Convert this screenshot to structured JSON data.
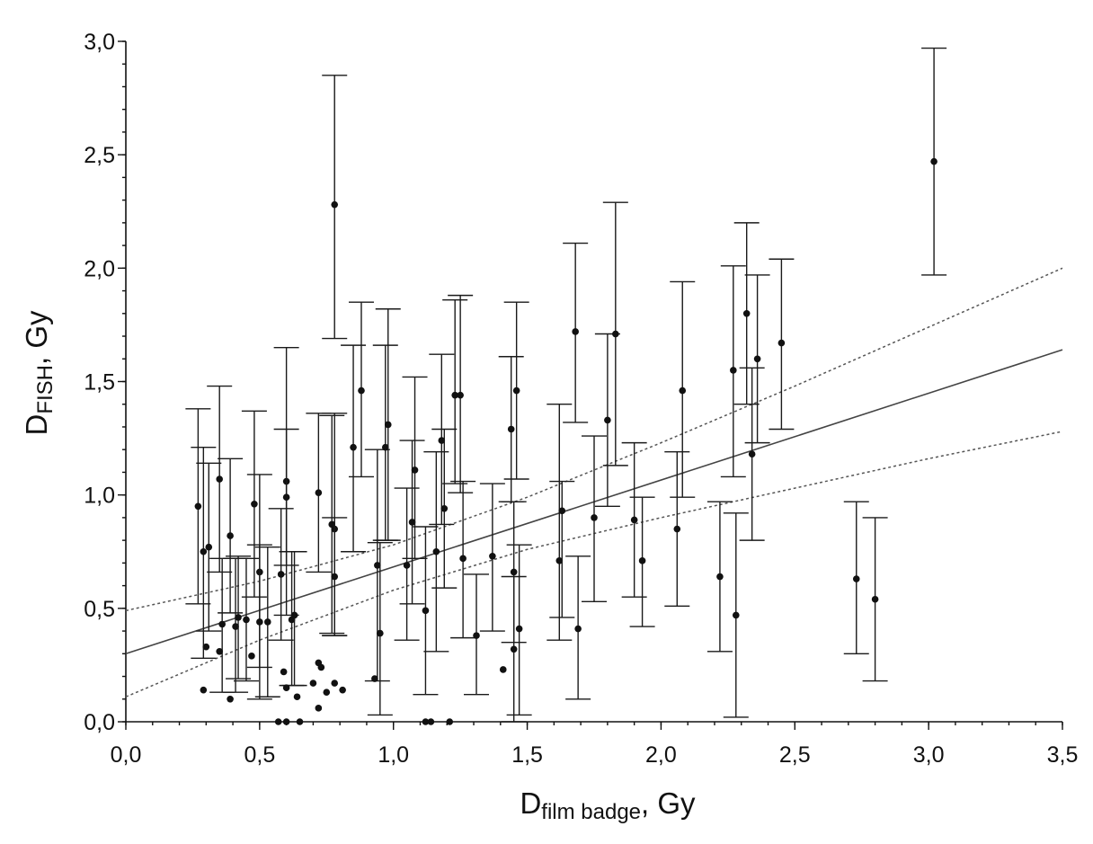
{
  "chart_data": {
    "type": "scatter",
    "xlabel": {
      "main": "D",
      "sub": "film badge",
      "suffix": ", Gy"
    },
    "ylabel": {
      "main": "D",
      "sub": "FISH",
      "suffix": ", Gy"
    },
    "xlim": [
      0,
      3.5
    ],
    "ylim": [
      0,
      3.0
    ],
    "grid": false,
    "x_ticks": [
      {
        "value": 0.0,
        "label": "0,0"
      },
      {
        "value": 0.5,
        "label": "0,5"
      },
      {
        "value": 1.0,
        "label": "1,0"
      },
      {
        "value": 1.5,
        "label": "1,5"
      },
      {
        "value": 2.0,
        "label": "2,0"
      },
      {
        "value": 2.5,
        "label": "2,5"
      },
      {
        "value": 3.0,
        "label": "3,0"
      },
      {
        "value": 3.5,
        "label": "3,5"
      }
    ],
    "y_ticks": [
      {
        "value": 0.0,
        "label": "0,0"
      },
      {
        "value": 0.5,
        "label": "0,5"
      },
      {
        "value": 1.0,
        "label": "1,0"
      },
      {
        "value": 1.5,
        "label": "1,5"
      },
      {
        "value": 2.0,
        "label": "2,0"
      },
      {
        "value": 2.5,
        "label": "2,5"
      },
      {
        "value": 3.0,
        "label": "3,0"
      }
    ],
    "points": [
      {
        "x": 0.27,
        "y": 0.95,
        "lo": 0.52,
        "hi": 1.38
      },
      {
        "x": 0.29,
        "y": 0.75,
        "lo": 0.28,
        "hi": 1.21
      },
      {
        "x": 0.31,
        "y": 0.77,
        "lo": 0.4,
        "hi": 1.14
      },
      {
        "x": 0.29,
        "y": 0.14
      },
      {
        "x": 0.3,
        "y": 0.33
      },
      {
        "x": 0.35,
        "y": 1.07,
        "lo": 0.66,
        "hi": 1.48
      },
      {
        "x": 0.36,
        "y": 0.43,
        "lo": 0.13,
        "hi": 0.72
      },
      {
        "x": 0.35,
        "y": 0.31
      },
      {
        "x": 0.39,
        "y": 0.82,
        "lo": 0.48,
        "hi": 1.16
      },
      {
        "x": 0.39,
        "y": 0.1
      },
      {
        "x": 0.41,
        "y": 0.42,
        "lo": 0.13,
        "hi": 0.72
      },
      {
        "x": 0.42,
        "y": 0.46,
        "lo": 0.19,
        "hi": 0.73
      },
      {
        "x": 0.45,
        "y": 0.45,
        "lo": 0.18,
        "hi": 0.72
      },
      {
        "x": 0.48,
        "y": 0.96,
        "lo": 0.55,
        "hi": 1.37
      },
      {
        "x": 0.47,
        "y": 0.29
      },
      {
        "x": 0.5,
        "y": 0.66,
        "lo": 0.24,
        "hi": 1.09
      },
      {
        "x": 0.5,
        "y": 0.44,
        "lo": 0.1,
        "hi": 0.78
      },
      {
        "x": 0.53,
        "y": 0.44,
        "lo": 0.11,
        "hi": 0.77
      },
      {
        "x": 0.58,
        "y": 0.65,
        "lo": 0.36,
        "hi": 0.94
      },
      {
        "x": 0.6,
        "y": 1.06,
        "lo": 0.47,
        "hi": 1.65
      },
      {
        "x": 0.6,
        "y": 0.99,
        "lo": 0.69,
        "hi": 1.29
      },
      {
        "x": 0.62,
        "y": 0.45,
        "lo": 0.16,
        "hi": 0.75
      },
      {
        "x": 0.63,
        "y": 0.47,
        "lo": 0.16,
        "hi": 0.75
      },
      {
        "x": 0.59,
        "y": 0.22
      },
      {
        "x": 0.6,
        "y": 0.15
      },
      {
        "x": 0.64,
        "y": 0.11
      },
      {
        "x": 0.57,
        "y": 0.0
      },
      {
        "x": 0.6,
        "y": 0.0
      },
      {
        "x": 0.65,
        "y": 0.0
      },
      {
        "x": 0.72,
        "y": 1.01,
        "lo": 0.66,
        "hi": 1.36
      },
      {
        "x": 0.7,
        "y": 0.17
      },
      {
        "x": 0.72,
        "y": 0.26
      },
      {
        "x": 0.73,
        "y": 0.24
      },
      {
        "x": 0.72,
        "y": 0.06
      },
      {
        "x": 0.75,
        "y": 0.13
      },
      {
        "x": 0.77,
        "y": 0.87,
        "lo": 0.39,
        "hi": 1.35
      },
      {
        "x": 0.78,
        "y": 0.85,
        "lo": 0.38,
        "hi": 1.36
      },
      {
        "x": 0.78,
        "y": 0.64,
        "lo": 0.38,
        "hi": 0.9
      },
      {
        "x": 0.78,
        "y": 2.28,
        "lo": 1.69,
        "hi": 2.85
      },
      {
        "x": 0.78,
        "y": 0.17
      },
      {
        "x": 0.81,
        "y": 0.14
      },
      {
        "x": 0.85,
        "y": 1.21,
        "lo": 0.75,
        "hi": 1.66
      },
      {
        "x": 0.88,
        "y": 1.46,
        "lo": 1.08,
        "hi": 1.85
      },
      {
        "x": 0.94,
        "y": 0.69,
        "lo": 0.18,
        "hi": 1.2
      },
      {
        "x": 0.95,
        "y": 0.39,
        "lo": 0.03,
        "hi": 0.79
      },
      {
        "x": 0.93,
        "y": 0.19
      },
      {
        "x": 0.97,
        "y": 1.21,
        "lo": 0.8,
        "hi": 1.66
      },
      {
        "x": 0.98,
        "y": 1.31,
        "lo": 0.8,
        "hi": 1.82
      },
      {
        "x": 1.05,
        "y": 0.69,
        "lo": 0.36,
        "hi": 1.03
      },
      {
        "x": 1.07,
        "y": 0.88,
        "lo": 0.52,
        "hi": 1.24
      },
      {
        "x": 1.08,
        "y": 1.11,
        "lo": 0.72,
        "hi": 1.52
      },
      {
        "x": 1.12,
        "y": 0.49,
        "lo": 0.12,
        "hi": 0.86
      },
      {
        "x": 1.12,
        "y": 0.0
      },
      {
        "x": 1.14,
        "y": 0.0
      },
      {
        "x": 1.21,
        "y": 0.0
      },
      {
        "x": 1.16,
        "y": 0.75,
        "lo": 0.31,
        "hi": 1.19
      },
      {
        "x": 1.18,
        "y": 1.24,
        "lo": 0.87,
        "hi": 1.62
      },
      {
        "x": 1.19,
        "y": 0.94,
        "lo": 0.59,
        "hi": 1.29
      },
      {
        "x": 1.23,
        "y": 1.44,
        "lo": 1.05,
        "hi": 1.86
      },
      {
        "x": 1.25,
        "y": 1.44,
        "lo": 1.01,
        "hi": 1.88
      },
      {
        "x": 1.26,
        "y": 0.72,
        "lo": 0.37,
        "hi": 1.06
      },
      {
        "x": 1.31,
        "y": 0.38,
        "lo": 0.12,
        "hi": 0.65
      },
      {
        "x": 1.37,
        "y": 0.73,
        "lo": 0.4,
        "hi": 1.05
      },
      {
        "x": 1.41,
        "y": 0.23
      },
      {
        "x": 1.44,
        "y": 1.29,
        "lo": 0.97,
        "hi": 1.61
      },
      {
        "x": 1.46,
        "y": 1.46,
        "lo": 1.07,
        "hi": 1.85
      },
      {
        "x": 1.45,
        "y": 0.66,
        "lo": 0.35,
        "hi": 0.97
      },
      {
        "x": 1.45,
        "y": 0.32,
        "lo": 0.0,
        "hi": 0.64
      },
      {
        "x": 1.47,
        "y": 0.41,
        "lo": 0.03,
        "hi": 0.78
      },
      {
        "x": 1.62,
        "y": 0.71,
        "lo": 0.36,
        "hi": 1.4
      },
      {
        "x": 1.63,
        "y": 0.93,
        "lo": 0.46,
        "hi": 1.06
      },
      {
        "x": 1.68,
        "y": 1.72,
        "lo": 1.32,
        "hi": 2.11
      },
      {
        "x": 1.69,
        "y": 0.41,
        "lo": 0.1,
        "hi": 0.73
      },
      {
        "x": 1.75,
        "y": 0.9,
        "lo": 0.53,
        "hi": 1.26
      },
      {
        "x": 1.8,
        "y": 1.33,
        "lo": 0.95,
        "hi": 1.71
      },
      {
        "x": 1.83,
        "y": 1.71,
        "lo": 1.13,
        "hi": 2.29
      },
      {
        "x": 1.9,
        "y": 0.89,
        "lo": 0.55,
        "hi": 1.23
      },
      {
        "x": 1.93,
        "y": 0.71,
        "lo": 0.42,
        "hi": 0.99
      },
      {
        "x": 2.06,
        "y": 0.85,
        "lo": 0.51,
        "hi": 1.19
      },
      {
        "x": 2.08,
        "y": 1.46,
        "lo": 0.99,
        "hi": 1.94
      },
      {
        "x": 2.22,
        "y": 0.64,
        "lo": 0.31,
        "hi": 0.97
      },
      {
        "x": 2.27,
        "y": 1.55,
        "lo": 1.08,
        "hi": 2.01
      },
      {
        "x": 2.28,
        "y": 0.47,
        "lo": 0.02,
        "hi": 0.92
      },
      {
        "x": 2.32,
        "y": 1.8,
        "lo": 1.4,
        "hi": 2.2
      },
      {
        "x": 2.34,
        "y": 1.18,
        "lo": 0.8,
        "hi": 1.56
      },
      {
        "x": 2.36,
        "y": 1.6,
        "lo": 1.23,
        "hi": 1.97
      },
      {
        "x": 2.45,
        "y": 1.67,
        "lo": 1.29,
        "hi": 2.04
      },
      {
        "x": 2.73,
        "y": 0.63,
        "lo": 0.3,
        "hi": 0.97
      },
      {
        "x": 2.8,
        "y": 0.54,
        "lo": 0.18,
        "hi": 0.9
      },
      {
        "x": 3.02,
        "y": 2.47,
        "lo": 1.97,
        "hi": 2.97
      }
    ],
    "fit": {
      "x": [
        0.0,
        3.5
      ],
      "y": [
        0.3,
        1.64
      ]
    },
    "confidence_band": {
      "x": [
        0.0,
        0.5,
        1.0,
        1.5,
        2.0,
        2.5,
        3.0,
        3.5
      ],
      "upper": [
        0.49,
        0.62,
        0.78,
        0.99,
        1.23,
        1.48,
        1.74,
        2.0
      ],
      "lower": [
        0.11,
        0.36,
        0.58,
        0.76,
        0.9,
        1.03,
        1.16,
        1.28
      ]
    }
  },
  "colors": {
    "points": "#111111",
    "error_bars": "#1a1a1a",
    "fit_line": "#444444",
    "confidence_band": "#555555"
  }
}
